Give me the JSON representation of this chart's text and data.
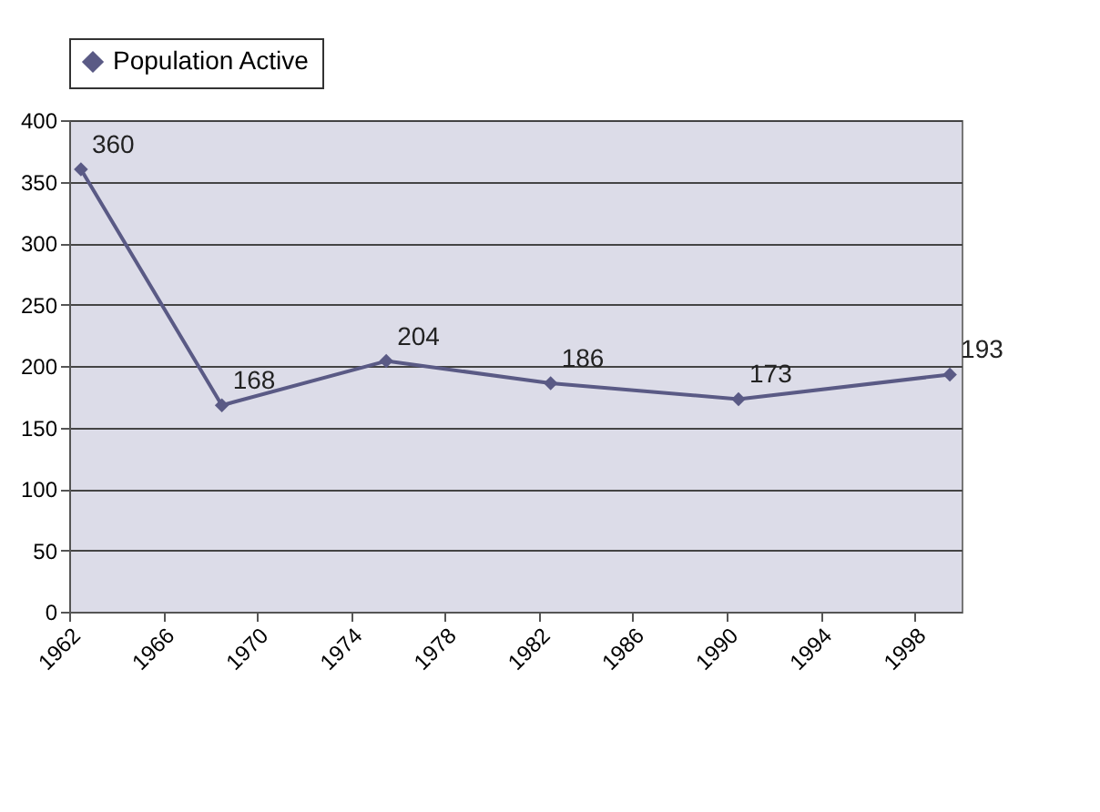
{
  "chart_data": {
    "type": "line",
    "x": [
      1962.5,
      1968.5,
      1975.5,
      1982.5,
      1990.5,
      1999.5
    ],
    "series": [
      {
        "name": "Population Active",
        "color": "#5a5a85",
        "values": [
          360,
          168,
          204,
          186,
          173,
          193
        ]
      }
    ],
    "xlim": [
      1962,
      2000
    ],
    "xticks": [
      1962,
      1966,
      1970,
      1974,
      1978,
      1982,
      1986,
      1990,
      1994,
      1998
    ],
    "ylim": [
      0,
      400
    ],
    "yticks": [
      0,
      50,
      100,
      150,
      200,
      250,
      300,
      350,
      400
    ],
    "grid": "y",
    "legend": "top",
    "marker": "diamond",
    "line_style": "solid",
    "data_labels": true
  }
}
